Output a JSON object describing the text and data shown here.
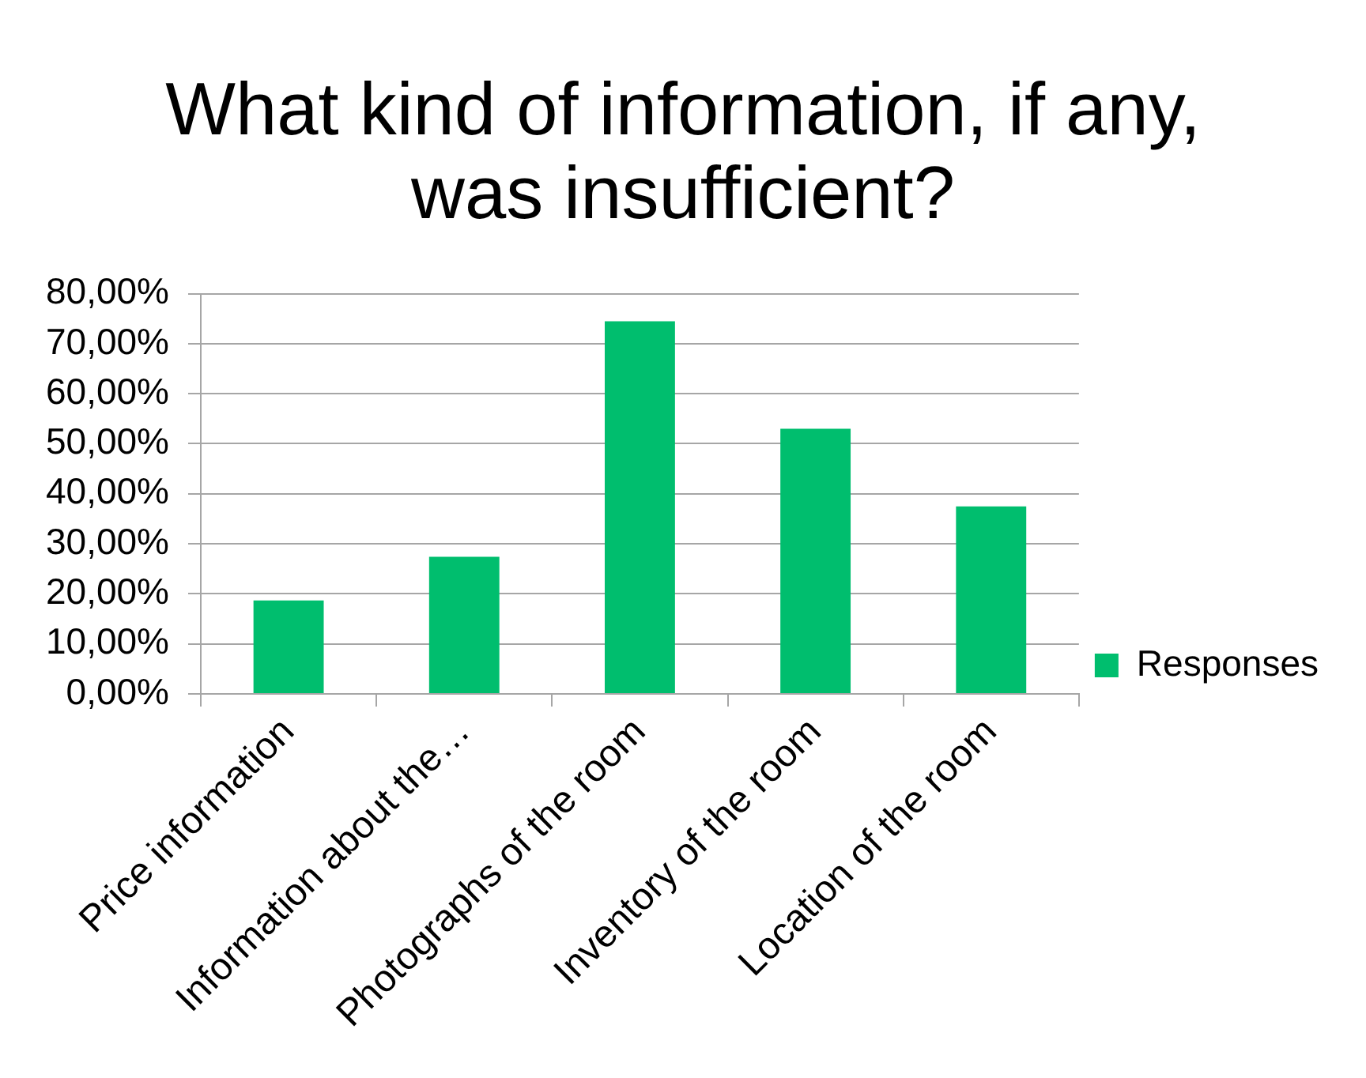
{
  "chart_data": {
    "type": "bar",
    "title": "What kind of information, if any, was insufficient?",
    "categories": [
      "Price information",
      "Information about the…",
      "Photographs of the room",
      "Inventory of the room",
      "Location of the room"
    ],
    "series": [
      {
        "name": "Responses",
        "color": "#00be6e",
        "values": [
          18.7,
          27.4,
          74.5,
          53.0,
          37.5
        ]
      }
    ],
    "ylim": [
      0,
      80
    ],
    "yticks": [
      {
        "value": 0,
        "label": "0,00%"
      },
      {
        "value": 10,
        "label": "10,00%"
      },
      {
        "value": 20,
        "label": "20,00%"
      },
      {
        "value": 30,
        "label": "30,00%"
      },
      {
        "value": 40,
        "label": "40,00%"
      },
      {
        "value": 50,
        "label": "50,00%"
      },
      {
        "value": 60,
        "label": "60,00%"
      },
      {
        "value": 70,
        "label": "70,00%"
      },
      {
        "value": 80,
        "label": "80,00%"
      }
    ],
    "grid": "y",
    "legend": "right"
  }
}
